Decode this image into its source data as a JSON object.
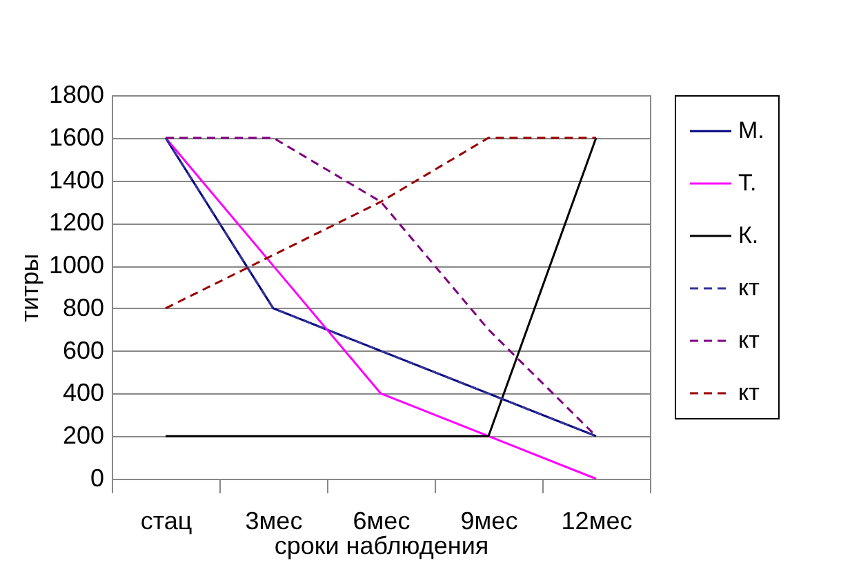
{
  "chart_data": {
    "type": "line",
    "xlabel": "сроки наблюдения",
    "ylabel": "титры",
    "categories": [
      "стац",
      "3мес",
      "6мес",
      "9мес",
      "12мес"
    ],
    "series": [
      {
        "name": "М.",
        "color": "#000080",
        "line_style": "solid",
        "values": [
          1600,
          800,
          600,
          400,
          200
        ]
      },
      {
        "name": "Т.",
        "color": "#ff00ff",
        "line_style": "solid",
        "values": [
          1600,
          1000,
          400,
          200,
          0
        ]
      },
      {
        "name": "К.",
        "color": "#000000",
        "line_style": "solid",
        "values": [
          200,
          200,
          200,
          200,
          1600
        ]
      },
      {
        "name": "кт",
        "color": "#333399",
        "line_style": "dashed",
        "values": [
          1600,
          800,
          600,
          400,
          200
        ]
      },
      {
        "name": "кт",
        "color": "#800080",
        "line_style": "dashed",
        "values": [
          1600,
          1600,
          1300,
          700,
          200
        ]
      },
      {
        "name": "кт",
        "color": "#990000",
        "line_style": "dashed",
        "values": [
          800,
          1050,
          1300,
          1600,
          1600
        ]
      }
    ],
    "ylim": [
      0,
      1800
    ],
    "yticks": [
      0,
      200,
      400,
      600,
      800,
      1000,
      1200,
      1400,
      1600,
      1800
    ],
    "grid": "y",
    "legend": "right",
    "marker": "none"
  }
}
